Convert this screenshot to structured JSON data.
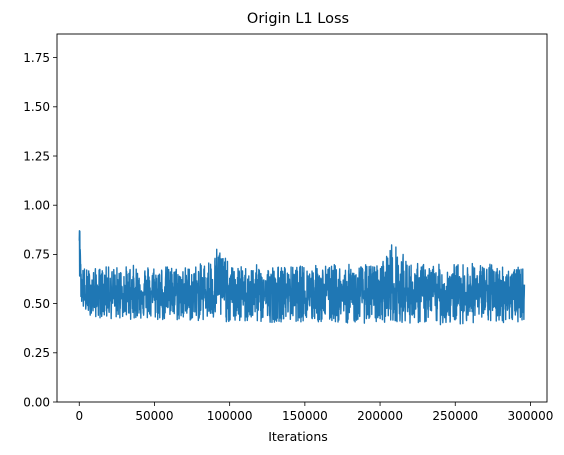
{
  "chart_data": {
    "type": "line",
    "title": "Origin L1 Loss",
    "xlabel": "Iterations",
    "ylabel": "",
    "xlim": [
      -14800,
      311000
    ],
    "ylim": [
      0.0,
      1.87
    ],
    "x_ticks": [
      0,
      50000,
      100000,
      150000,
      200000,
      250000,
      300000
    ],
    "x_tick_labels": [
      "0",
      "50000",
      "100000",
      "150000",
      "200000",
      "250000",
      "300000"
    ],
    "y_ticks": [
      0.0,
      0.25,
      0.5,
      0.75,
      1.0,
      1.25,
      1.5,
      1.75
    ],
    "y_tick_labels": [
      "0.00",
      "0.25",
      "0.50",
      "0.75",
      "1.00",
      "1.25",
      "1.50",
      "1.75"
    ],
    "grid": false,
    "series": [
      {
        "color": "#1f77b4",
        "x_range": [
          0,
          296000
        ],
        "x": [
          0,
          500,
          1000,
          2000,
          3500,
          5000,
          10000,
          20000,
          30000,
          40000,
          50000,
          60000,
          70000,
          80000,
          90000,
          92000,
          100000,
          110000,
          120000,
          140000,
          160000,
          180000,
          200000,
          208000,
          220000,
          240000,
          260000,
          280000,
          296000
        ],
        "y": [
          0.82,
          0.87,
          0.64,
          0.56,
          0.52,
          0.54,
          0.55,
          0.56,
          0.55,
          0.56,
          0.55,
          0.56,
          0.55,
          0.56,
          0.56,
          0.58,
          0.55,
          0.55,
          0.55,
          0.55,
          0.55,
          0.55,
          0.55,
          0.56,
          0.55,
          0.55,
          0.55,
          0.55,
          0.55
        ],
        "band_high": [
          0.87,
          0.87,
          0.72,
          0.7,
          0.69,
          0.68,
          0.68,
          0.69,
          0.69,
          0.7,
          0.7,
          0.69,
          0.69,
          0.7,
          0.75,
          0.83,
          0.69,
          0.69,
          0.7,
          0.69,
          0.7,
          0.7,
          0.7,
          0.82,
          0.71,
          0.7,
          0.71,
          0.7,
          0.68
        ],
        "band_low": [
          0.62,
          0.6,
          0.51,
          0.48,
          0.46,
          0.45,
          0.43,
          0.42,
          0.42,
          0.42,
          0.41,
          0.41,
          0.41,
          0.41,
          0.41,
          0.42,
          0.4,
          0.4,
          0.4,
          0.41,
          0.4,
          0.4,
          0.4,
          0.41,
          0.4,
          0.39,
          0.4,
          0.4,
          0.41
        ],
        "extreme_min": 0.35
      }
    ]
  }
}
